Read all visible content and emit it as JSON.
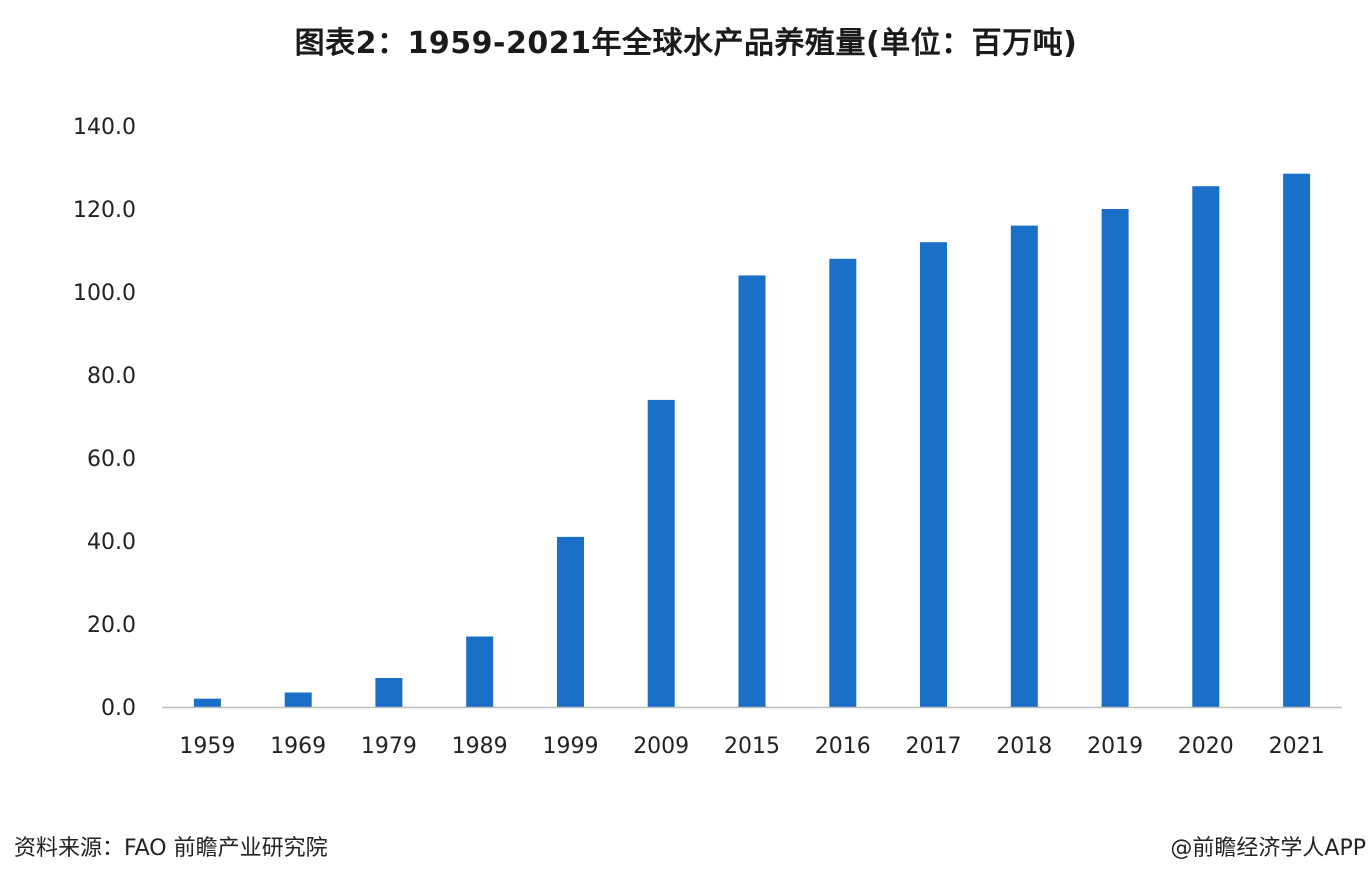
{
  "chart_data": {
    "type": "bar",
    "title": "图表2：1959-2021年全球水产品养殖量(单位：百万吨)",
    "categories": [
      "1959",
      "1969",
      "1979",
      "1989",
      "1999",
      "2009",
      "2015",
      "2016",
      "2017",
      "2018",
      "2019",
      "2020",
      "2021"
    ],
    "values": [
      2.0,
      3.5,
      7.0,
      17.0,
      41.0,
      74.0,
      104.0,
      108.0,
      112.0,
      116.0,
      120.0,
      125.5,
      128.5
    ],
    "y_ticks": [
      "0.0",
      "20.0",
      "40.0",
      "60.0",
      "80.0",
      "100.0",
      "120.0",
      "140.0"
    ],
    "ylim": [
      0,
      140
    ],
    "grid": false,
    "legend": "none",
    "bar_color": "#1a6fc9",
    "axis_color": "#bfbfbf"
  },
  "footer": {
    "source": "资料来源：FAO 前瞻产业研究院",
    "credit": "@前瞻经济学人APP"
  }
}
